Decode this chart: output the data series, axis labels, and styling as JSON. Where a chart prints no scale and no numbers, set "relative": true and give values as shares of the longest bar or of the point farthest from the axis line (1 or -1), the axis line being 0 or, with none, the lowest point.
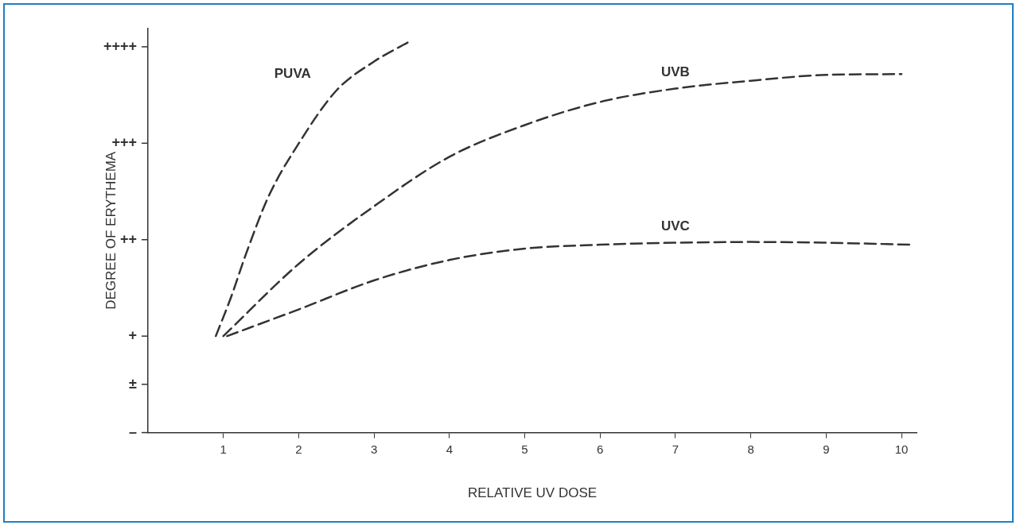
{
  "chart_data": {
    "type": "line",
    "xlabel": "RELATIVE UV DOSE",
    "ylabel": "DEGREE OF ERYTHEMA",
    "relative": true,
    "xlim": [
      0,
      10.2
    ],
    "xticks": [
      1,
      2,
      3,
      4,
      5,
      6,
      7,
      8,
      9,
      10
    ],
    "annotations": [
      "–",
      "±",
      "+",
      "++",
      "+++",
      "++++"
    ],
    "grid": false,
    "legend": false,
    "line_style": "dashed",
    "marker": "none",
    "series": [
      {
        "name": "PUVA",
        "color": "#333333",
        "x": [
          0.9,
          1.1,
          1.3,
          1.6,
          2.0,
          2.5,
          3.0,
          3.5
        ],
        "values": [
          0.246,
          0.344,
          0.455,
          0.602,
          0.737,
          0.872,
          0.946,
          1
        ]
      },
      {
        "name": "UVB",
        "color": "#333333",
        "x": [
          1.0,
          2,
          3,
          4,
          5,
          6,
          7,
          8,
          9,
          10
        ],
        "values": [
          0.246,
          0.43,
          0.577,
          0.703,
          0.784,
          0.843,
          0.877,
          0.897,
          0.912,
          0.914
        ]
      },
      {
        "name": "UVC",
        "color": "#333333",
        "x": [
          1.05,
          2,
          3,
          4,
          5,
          6,
          7,
          8,
          9,
          10.15
        ],
        "values": [
          0.246,
          0.314,
          0.388,
          0.44,
          0.469,
          0.479,
          0.484,
          0.486,
          0.484,
          0.479
        ]
      }
    ]
  }
}
